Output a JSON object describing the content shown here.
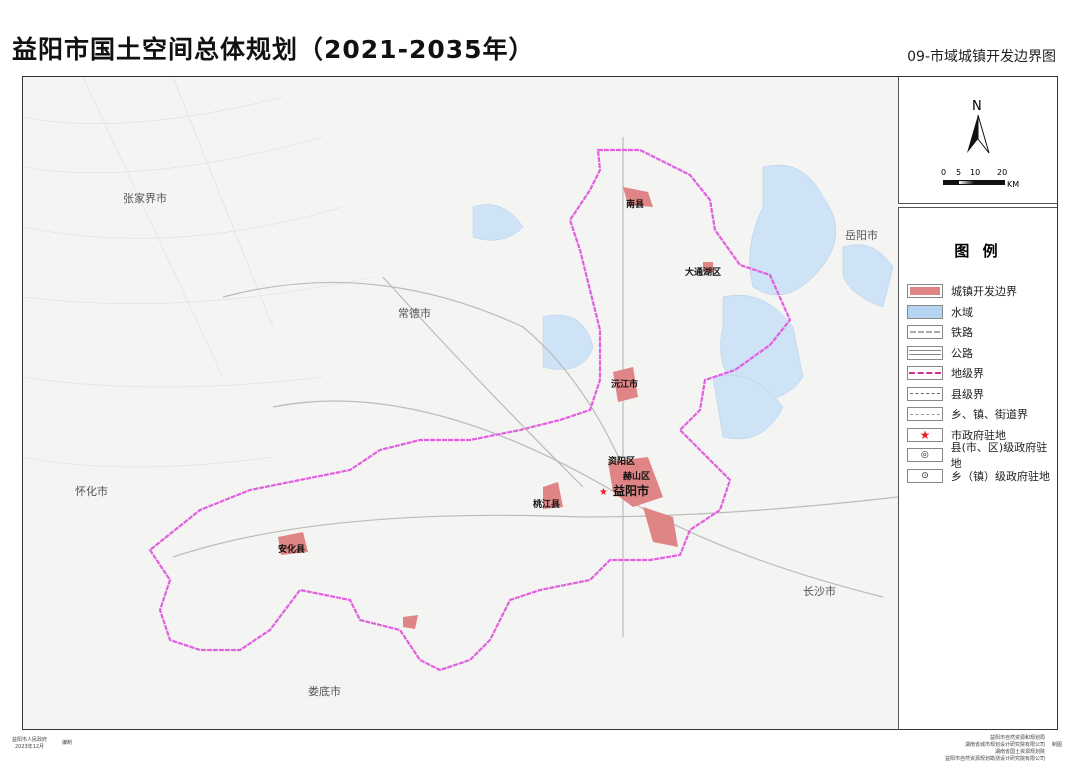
{
  "title": "益阳市国土空间总体规划（2021-2035年）",
  "subtitle": "09-市域城镇开发边界图",
  "north": {
    "label": "N",
    "scale_ticks": [
      "0",
      "5",
      "10",
      "20"
    ],
    "scale_unit": "KM"
  },
  "legend": {
    "title": "图 例",
    "items": [
      {
        "label": "城镇开发边界",
        "symbol": "fill",
        "color": "#e08585"
      },
      {
        "label": "水域",
        "symbol": "fill",
        "color": "#b5d4f4"
      },
      {
        "label": "铁路",
        "symbol": "rail"
      },
      {
        "label": "公路",
        "symbol": "road"
      },
      {
        "label": "地级界",
        "symbol": "dash",
        "color": "#d0308a"
      },
      {
        "label": "县级界",
        "symbol": "dashdot"
      },
      {
        "label": "乡、镇、街道界",
        "symbol": "dash-gray"
      },
      {
        "label": "市政府驻地",
        "symbol": "star",
        "color": "#e8202a"
      },
      {
        "label": "县(市、区)级政府驻地",
        "symbol": "double-circle"
      },
      {
        "label": "乡（镇）级政府驻地",
        "symbol": "dot-circle"
      }
    ]
  },
  "neighbors": [
    "张家界市",
    "常德市",
    "岳阳市",
    "怀化市",
    "长沙市",
    "娄底市"
  ],
  "places": [
    "南县",
    "大通湖区",
    "沅江市",
    "资阳区",
    "赫山区",
    "益阳市",
    "桃江县",
    "安化县"
  ],
  "footer": {
    "left": [
      "益阳市人民政府",
      "2023年12月"
    ],
    "left_role": "编制",
    "right": [
      "益阳市自然资源和规划局",
      "湖南省城市规划设计研究院有限公司",
      "湖南省国土资源规划院",
      "益阳市自然资源规划勘测设计研究院有限公司"
    ],
    "right_role": "制图"
  },
  "colors": {
    "boundary": "#e060e0",
    "urban": "#e08585",
    "water": "#cfe3f7"
  }
}
